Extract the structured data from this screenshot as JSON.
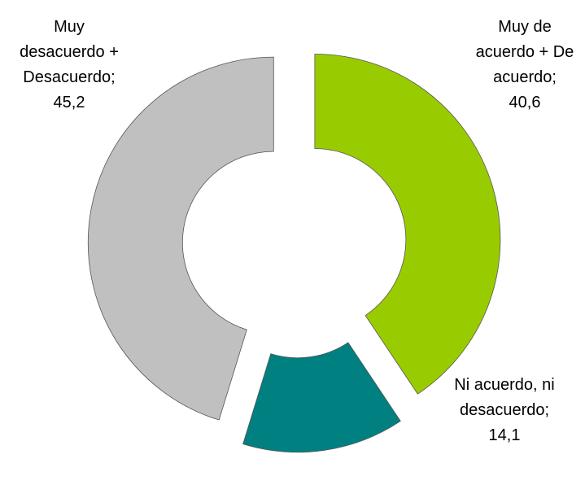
{
  "chart_data": {
    "type": "donut",
    "categories": [
      "Muy de acuerdo + De acuerdo;",
      "Ni acuerdo, ni desacuerdo;",
      "Muy desacuerdo + Desacuerdo;"
    ],
    "values": [
      40.6,
      14.1,
      45.2
    ],
    "value_labels": [
      "40,6",
      "14,1",
      "45,2"
    ],
    "colors": [
      "#99cc00",
      "#008080",
      "#c0c0c0"
    ]
  }
}
